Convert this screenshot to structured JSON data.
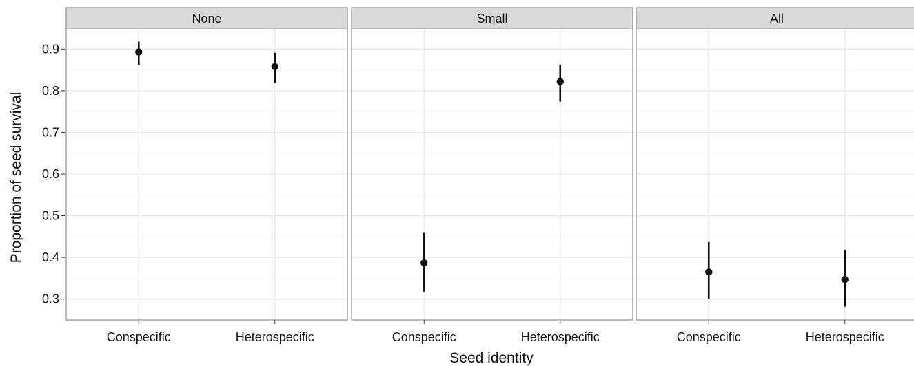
{
  "chart_data": {
    "type": "scatter",
    "xlabel": "Seed identity",
    "ylabel": "Proportion of seed survival",
    "ylim": [
      0.25,
      0.95
    ],
    "yticks": [
      0.3,
      0.4,
      0.5,
      0.6,
      0.7,
      0.8,
      0.9
    ],
    "ytick_labels": [
      "0.3",
      "0.4",
      "0.5",
      "0.6",
      "0.7",
      "0.8",
      "0.9"
    ],
    "categories": [
      "Conspecific",
      "Heterospecific"
    ],
    "grid": true,
    "point_color": "#111111",
    "strip_color": "#d9d9d9",
    "panels": [
      {
        "title": "None",
        "points": [
          {
            "x": "Conspecific",
            "y": 0.893,
            "lower": 0.862,
            "upper": 0.918
          },
          {
            "x": "Heterospecific",
            "y": 0.858,
            "lower": 0.818,
            "upper": 0.891
          }
        ]
      },
      {
        "title": "Small",
        "points": [
          {
            "x": "Conspecific",
            "y": 0.387,
            "lower": 0.318,
            "upper": 0.46
          },
          {
            "x": "Heterospecific",
            "y": 0.822,
            "lower": 0.774,
            "upper": 0.862
          }
        ]
      },
      {
        "title": "All",
        "points": [
          {
            "x": "Conspecific",
            "y": 0.365,
            "lower": 0.3,
            "upper": 0.437
          },
          {
            "x": "Heterospecific",
            "y": 0.347,
            "lower": 0.282,
            "upper": 0.418
          }
        ]
      }
    ]
  }
}
